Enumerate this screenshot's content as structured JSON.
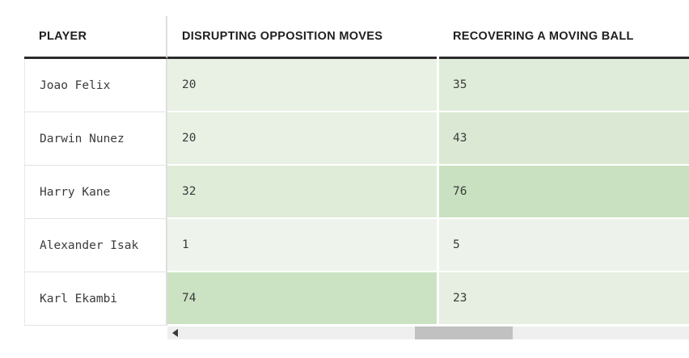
{
  "table": {
    "columns": [
      {
        "label": "PLAYER"
      },
      {
        "label": "DISRUPTING OPPOSITION MOVES"
      },
      {
        "label": "RECOVERING A MOVING BALL"
      }
    ],
    "rows": [
      {
        "player": "Joao Felix",
        "disrupting": {
          "value": "20",
          "color": "#e9f1e5"
        },
        "recovering": {
          "value": "35",
          "color": "#dfecd9"
        }
      },
      {
        "player": "Darwin Nunez",
        "disrupting": {
          "value": "20",
          "color": "#e9f1e5"
        },
        "recovering": {
          "value": "43",
          "color": "#dbe9d4"
        }
      },
      {
        "player": "Harry Kane",
        "disrupting": {
          "value": "32",
          "color": "#dfecd8"
        },
        "recovering": {
          "value": "76",
          "color": "#c9e1c0"
        }
      },
      {
        "player": "Alexander Isak",
        "disrupting": {
          "value": "1",
          "color": "#eef4eb"
        },
        "recovering": {
          "value": "5",
          "color": "#edf3ea"
        }
      },
      {
        "player": "Karl Ekambi",
        "disrupting": {
          "value": "74",
          "color": "#cbe3c2"
        },
        "recovering": {
          "value": "23",
          "color": "#e6efe1"
        }
      }
    ]
  },
  "colors": {
    "header_text": "#1f1f1f",
    "header_rule": "#2b2b2b",
    "column_divider": "#dedede",
    "cell_text": "#3b3b3b",
    "scrollbar_track": "#efefef",
    "scrollbar_thumb": "#c1c1c1",
    "scrollbar_arrow": "#3a3a3a"
  },
  "scrollbar": {
    "orientation": "horizontal",
    "left_arrow_icon": "left-triangle"
  }
}
